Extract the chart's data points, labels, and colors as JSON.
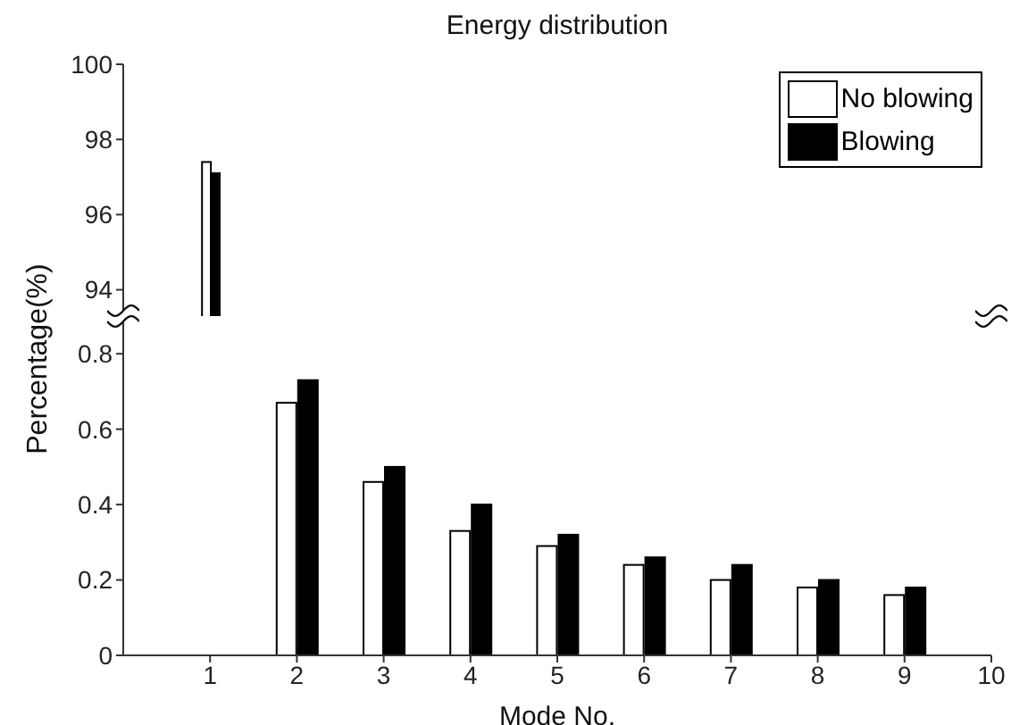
{
  "chart_data": [
    {
      "type": "bar",
      "title": "Energy distribution",
      "x": [
        1
      ],
      "series": [
        {
          "name": "No blowing",
          "color": "#ffffff",
          "values": [
            97.4
          ]
        },
        {
          "name": "Blowing",
          "color": "#000000",
          "values": [
            97.1
          ]
        }
      ],
      "xlim": [
        0,
        10
      ],
      "xticks": [
        1,
        2,
        3,
        4,
        5,
        6,
        7,
        8,
        9,
        10
      ],
      "ylim": [
        93.3,
        100
      ],
      "yticks": [
        94,
        96,
        98,
        100
      ],
      "tick_labels": "y",
      "legend": "top right",
      "grid": false
    },
    {
      "type": "bar",
      "xlabel": "Mode No.",
      "ylabel": "Percentage(%)",
      "x": [
        2,
        3,
        4,
        5,
        6,
        7,
        8,
        9
      ],
      "series": [
        {
          "color": "#ffffff",
          "values": [
            0.67,
            0.46,
            0.33,
            0.29,
            0.24,
            0.2,
            0.18,
            0.16
          ]
        },
        {
          "color": "#000000",
          "values": [
            0.73,
            0.5,
            0.4,
            0.32,
            0.26,
            0.24,
            0.2,
            0.18
          ]
        }
      ],
      "xlim": [
        0,
        10
      ],
      "xticks": [
        1,
        2,
        3,
        4,
        5,
        6,
        7,
        8,
        9,
        10
      ],
      "ylim": [
        0,
        0.9
      ],
      "yticks": [
        0,
        0.2,
        0.4,
        0.6,
        0.8
      ],
      "grid": false
    }
  ]
}
